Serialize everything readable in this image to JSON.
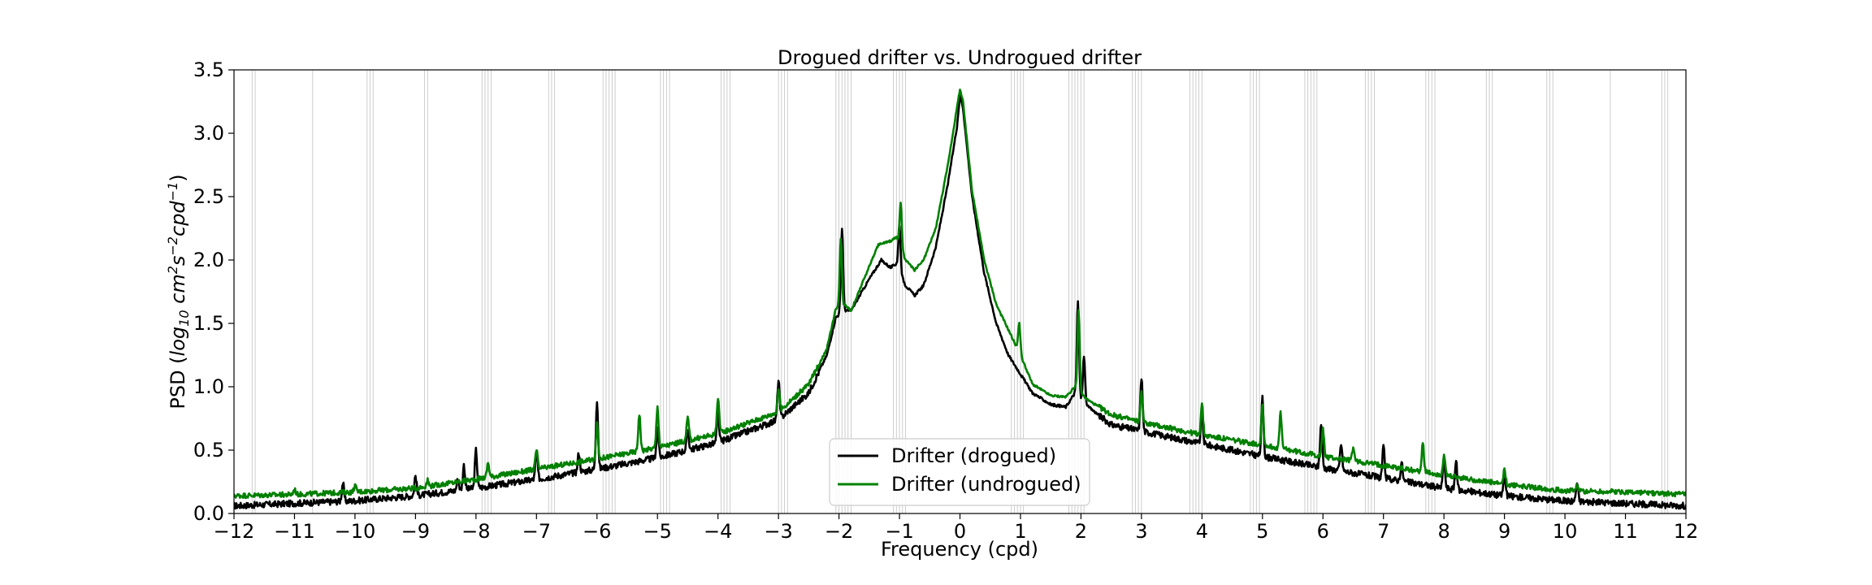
{
  "chart_data": {
    "type": "line",
    "title": "Drogued drifter vs. Undrogued drifter",
    "xlabel": "Frequency (cpd)",
    "ylabel": "PSD (log10 cm²s⁻²cpd⁻¹)",
    "ylabel_parts": {
      "prefix": "PSD (",
      "log": "log",
      "log_sub": "10",
      "cm": " cm",
      "cm_sup": "2",
      "s": "s",
      "s_sup": "−2",
      "cpd": "cpd",
      "cpd_sup": "−1",
      "suffix": ")"
    },
    "xlim": [
      -12,
      12
    ],
    "ylim": [
      0,
      3.5
    ],
    "xticks": [
      -12,
      -11,
      -10,
      -9,
      -8,
      -7,
      -6,
      -5,
      -4,
      -3,
      -2,
      -1,
      0,
      1,
      2,
      3,
      4,
      5,
      6,
      7,
      8,
      9,
      10,
      11,
      12
    ],
    "xtick_labels": [
      "−12",
      "−11",
      "−10",
      "−9",
      "−8",
      "−7",
      "−6",
      "−5",
      "−4",
      "−3",
      "−2",
      "−1",
      "0",
      "1",
      "2",
      "3",
      "4",
      "5",
      "6",
      "7",
      "8",
      "9",
      "10",
      "11",
      "12"
    ],
    "yticks": [
      0.0,
      0.5,
      1.0,
      1.5,
      2.0,
      2.5,
      3.0,
      3.5
    ],
    "ytick_labels": [
      "0.0",
      "0.5",
      "1.0",
      "1.5",
      "2.0",
      "2.5",
      "3.0",
      "3.5"
    ],
    "grid": false,
    "legend_position": "bottom-center",
    "vertical_line_freqs": [
      -11.7,
      -11.65,
      -10.7,
      -9.8,
      -9.75,
      -9.7,
      -8.85,
      -8.8,
      -7.9,
      -7.85,
      -7.8,
      -7.75,
      -6.8,
      -6.75,
      -6.7,
      -5.9,
      -5.85,
      -5.8,
      -5.75,
      -5.7,
      -4.95,
      -4.9,
      -4.85,
      -4.8,
      -3.95,
      -3.9,
      -3.85,
      -3.8,
      -3.0,
      -2.95,
      -2.9,
      -2.85,
      -2.05,
      -2.0,
      -1.95,
      -1.9,
      -1.85,
      -1.8,
      -1.1,
      -1.05,
      -1.0,
      -0.95,
      -0.9,
      0.85,
      0.9,
      0.95,
      1.0,
      1.05,
      1.8,
      1.85,
      1.9,
      1.95,
      2.0,
      2.05,
      2.85,
      2.9,
      2.95,
      3.0,
      3.8,
      3.85,
      3.9,
      3.95,
      4.0,
      4.8,
      4.85,
      4.9,
      4.95,
      5.7,
      5.75,
      5.8,
      5.85,
      5.9,
      6.7,
      6.75,
      6.8,
      6.85,
      7.7,
      7.75,
      7.8,
      7.85,
      8.7,
      8.75,
      8.8,
      9.7,
      9.75,
      9.8,
      10.75,
      11.6,
      11.65,
      11.7
    ],
    "series": [
      {
        "name": "Drifter (drogued)",
        "color": "#000000",
        "base_points": [
          [
            -12,
            0.06
          ],
          [
            -11,
            0.08
          ],
          [
            -10,
            0.1
          ],
          [
            -9,
            0.14
          ],
          [
            -8,
            0.2
          ],
          [
            -7,
            0.27
          ],
          [
            -6,
            0.35
          ],
          [
            -5,
            0.44
          ],
          [
            -4,
            0.56
          ],
          [
            -3,
            0.74
          ],
          [
            -2.5,
            0.95
          ],
          [
            -2.2,
            1.25
          ],
          [
            -2.05,
            1.55
          ],
          [
            -1.9,
            1.6
          ],
          [
            -1.8,
            1.6
          ],
          [
            -1.5,
            1.85
          ],
          [
            -1.3,
            2.0
          ],
          [
            -1.15,
            1.94
          ],
          [
            -1.05,
            1.97
          ],
          [
            -0.9,
            1.8
          ],
          [
            -0.75,
            1.72
          ],
          [
            -0.6,
            1.8
          ],
          [
            -0.4,
            2.1
          ],
          [
            -0.2,
            2.6
          ],
          [
            -0.05,
            3.05
          ],
          [
            0.0,
            3.3
          ],
          [
            0.05,
            3.2
          ],
          [
            0.2,
            2.5
          ],
          [
            0.4,
            1.9
          ],
          [
            0.6,
            1.5
          ],
          [
            0.8,
            1.25
          ],
          [
            1.0,
            1.1
          ],
          [
            1.2,
            0.95
          ],
          [
            1.5,
            0.86
          ],
          [
            1.75,
            0.84
          ],
          [
            1.9,
            0.95
          ],
          [
            2.1,
            0.85
          ],
          [
            2.5,
            0.7
          ],
          [
            3.0,
            0.65
          ],
          [
            4.0,
            0.55
          ],
          [
            5.0,
            0.45
          ],
          [
            6.0,
            0.36
          ],
          [
            7.0,
            0.28
          ],
          [
            8.0,
            0.2
          ],
          [
            9.0,
            0.14
          ],
          [
            10.0,
            0.1
          ],
          [
            11.0,
            0.08
          ],
          [
            12.0,
            0.06
          ]
        ],
        "peaks": [
          [
            -10.2,
            0.24
          ],
          [
            -9.0,
            0.3
          ],
          [
            -8.3,
            0.27
          ],
          [
            -8.2,
            0.38
          ],
          [
            -8.0,
            0.5
          ],
          [
            -7.0,
            0.48
          ],
          [
            -6.3,
            0.48
          ],
          [
            -6.0,
            0.9
          ],
          [
            -5.0,
            0.68
          ],
          [
            -4.5,
            0.66
          ],
          [
            -4.0,
            0.78
          ],
          [
            -3.0,
            1.05
          ],
          [
            -1.95,
            2.25
          ],
          [
            -1.0,
            2.28
          ],
          [
            1.95,
            1.67
          ],
          [
            2.05,
            1.24
          ],
          [
            3.0,
            1.08
          ],
          [
            4.0,
            0.78
          ],
          [
            5.0,
            0.91
          ],
          [
            5.97,
            0.71
          ],
          [
            6.3,
            0.55
          ],
          [
            7.0,
            0.52
          ],
          [
            7.3,
            0.4
          ],
          [
            8.0,
            0.42
          ],
          [
            8.2,
            0.41
          ],
          [
            9.0,
            0.3
          ],
          [
            10.2,
            0.24
          ]
        ],
        "noise": 0.025
      },
      {
        "name": "Drifter (undrogued)",
        "color": "#008000",
        "base_points": [
          [
            -12,
            0.14
          ],
          [
            -11,
            0.15
          ],
          [
            -10,
            0.17
          ],
          [
            -9,
            0.2
          ],
          [
            -8,
            0.27
          ],
          [
            -7,
            0.35
          ],
          [
            -6,
            0.43
          ],
          [
            -5,
            0.52
          ],
          [
            -4,
            0.63
          ],
          [
            -3,
            0.8
          ],
          [
            -2.5,
            1.02
          ],
          [
            -2.2,
            1.3
          ],
          [
            -2.05,
            1.62
          ],
          [
            -1.9,
            1.65
          ],
          [
            -1.8,
            1.6
          ],
          [
            -1.5,
            1.95
          ],
          [
            -1.35,
            2.12
          ],
          [
            -1.15,
            2.15
          ],
          [
            -1.05,
            2.18
          ],
          [
            -0.9,
            2.0
          ],
          [
            -0.75,
            1.92
          ],
          [
            -0.6,
            2.0
          ],
          [
            -0.4,
            2.25
          ],
          [
            -0.2,
            2.75
          ],
          [
            -0.05,
            3.2
          ],
          [
            0.0,
            3.35
          ],
          [
            0.05,
            3.25
          ],
          [
            0.2,
            2.55
          ],
          [
            0.4,
            2.0
          ],
          [
            0.6,
            1.65
          ],
          [
            0.8,
            1.45
          ],
          [
            1.0,
            1.25
          ],
          [
            1.2,
            1.02
          ],
          [
            1.5,
            0.93
          ],
          [
            1.75,
            0.92
          ],
          [
            1.9,
            1.0
          ],
          [
            2.1,
            0.9
          ],
          [
            2.5,
            0.78
          ],
          [
            3.0,
            0.72
          ],
          [
            4.0,
            0.62
          ],
          [
            5.0,
            0.54
          ],
          [
            6.0,
            0.45
          ],
          [
            7.0,
            0.38
          ],
          [
            8.0,
            0.3
          ],
          [
            9.0,
            0.23
          ],
          [
            10.0,
            0.18
          ],
          [
            11.0,
            0.17
          ],
          [
            12.0,
            0.15
          ]
        ],
        "peaks": [
          [
            -11.0,
            0.19
          ],
          [
            -10.0,
            0.22
          ],
          [
            -8.8,
            0.26
          ],
          [
            -7.8,
            0.4
          ],
          [
            -7.0,
            0.5
          ],
          [
            -6.0,
            0.7
          ],
          [
            -5.3,
            0.79
          ],
          [
            -5.0,
            0.84
          ],
          [
            -4.5,
            0.76
          ],
          [
            -4.0,
            0.92
          ],
          [
            -3.0,
            0.98
          ],
          [
            -1.97,
            2.17
          ],
          [
            -0.98,
            2.45
          ],
          [
            0.98,
            1.5
          ],
          [
            1.96,
            1.6
          ],
          [
            3.0,
            0.96
          ],
          [
            4.0,
            0.86
          ],
          [
            5.0,
            0.86
          ],
          [
            5.3,
            0.79
          ],
          [
            6.0,
            0.67
          ],
          [
            6.5,
            0.52
          ],
          [
            7.65,
            0.56
          ],
          [
            8.0,
            0.46
          ],
          [
            9.0,
            0.34
          ],
          [
            10.2,
            0.22
          ]
        ],
        "noise": 0.02
      }
    ]
  }
}
